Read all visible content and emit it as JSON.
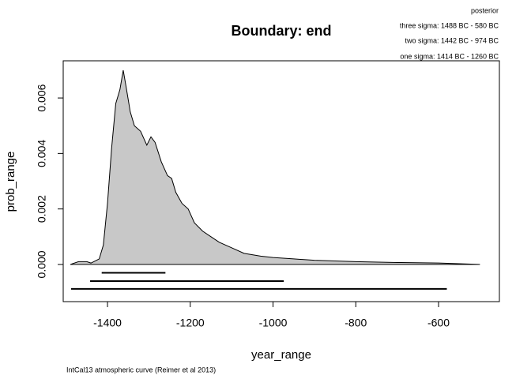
{
  "chart_data": {
    "type": "area",
    "title": "Boundary: end",
    "subtitle": "posterior",
    "annotations": [
      "three sigma: 1488 BC - 580 BC",
      "two sigma: 1442 BC - 974 BC",
      "one sigma: 1414 BC - 1260 BC"
    ],
    "xlabel": "year_range",
    "ylabel": "prob_range",
    "footnote": "IntCal13 atmospheric curve (Reimer et al 2013)",
    "x": [
      -1490,
      -1470,
      -1450,
      -1440,
      -1420,
      -1410,
      -1400,
      -1390,
      -1380,
      -1370,
      -1362,
      -1355,
      -1345,
      -1335,
      -1320,
      -1305,
      -1295,
      -1285,
      -1270,
      -1255,
      -1245,
      -1235,
      -1220,
      -1205,
      -1190,
      -1170,
      -1150,
      -1130,
      -1100,
      -1070,
      -1030,
      -1000,
      -950,
      -900,
      -800,
      -700,
      -600,
      -500
    ],
    "series": [
      {
        "color": "#c8c8c8",
        "values": [
          0,
          0.0001,
          0.0001,
          5e-05,
          0.0002,
          0.0007,
          0.0022,
          0.0042,
          0.0058,
          0.0063,
          0.007,
          0.0064,
          0.0055,
          0.005,
          0.0048,
          0.0043,
          0.0046,
          0.0044,
          0.0037,
          0.0032,
          0.0031,
          0.0026,
          0.0022,
          0.002,
          0.0015,
          0.0012,
          0.001,
          0.0008,
          0.0006,
          0.0004,
          0.0003,
          0.00025,
          0.0002,
          0.00015,
          0.0001,
          7e-05,
          5e-05,
          0
        ]
      }
    ],
    "ranges": [
      {
        "from": -1414,
        "to": -1260,
        "y": -0.0003
      },
      {
        "from": -1442,
        "to": -974,
        "y": -0.0006
      },
      {
        "from": -1488,
        "to": -580,
        "y": -0.00088
      }
    ],
    "xlim": [
      -1507,
      -453
    ],
    "ylim": [
      -0.00134,
      0.00734
    ],
    "xticks": [
      -1400,
      -1200,
      -1000,
      -800,
      -600
    ],
    "yticks": [
      {
        "value": 0,
        "label": "0.000"
      },
      {
        "value": 0.002,
        "label": "0.002"
      },
      {
        "value": 0.004,
        "label": "0.004"
      },
      {
        "value": 0.006,
        "label": "0.006"
      }
    ]
  }
}
